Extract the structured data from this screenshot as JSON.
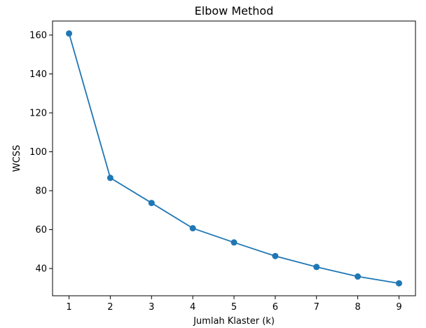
{
  "chart_data": {
    "type": "line",
    "title": "Elbow Method",
    "xlabel": "Jumlah Klaster (k)",
    "ylabel": "WCSS",
    "x": [
      1,
      2,
      3,
      4,
      5,
      6,
      7,
      8,
      9
    ],
    "series": [
      {
        "values": [
          160.8,
          86.6,
          73.7,
          60.7,
          53.4,
          46.4,
          40.8,
          35.9,
          32.4
        ],
        "color": "#1f77b4",
        "marker": "circle"
      }
    ],
    "xlim": [
      0.6,
      9.4
    ],
    "ylim": [
      26.0,
      167.2
    ],
    "xticks": [
      1,
      2,
      3,
      4,
      5,
      6,
      7,
      8,
      9
    ],
    "yticks": [
      40,
      60,
      80,
      100,
      120,
      140,
      160
    ],
    "grid": false,
    "legend": "none"
  }
}
